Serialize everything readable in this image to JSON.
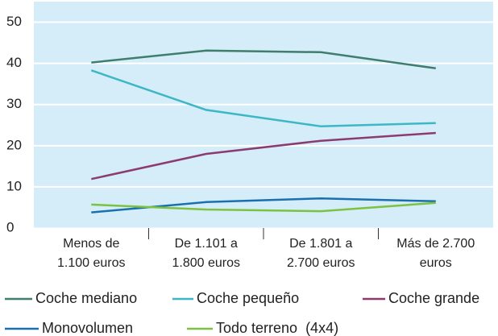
{
  "chart_data": {
    "type": "line",
    "categories": [
      [
        "Menos de",
        "1.100 euros"
      ],
      [
        "De 1.101 a",
        "1.800 euros"
      ],
      [
        "De 1.801 a",
        "2.700 euros"
      ],
      [
        "Más de 2.700",
        "euros"
      ]
    ],
    "series": [
      {
        "name": "Coche mediano",
        "color": "#3f7d6c",
        "values": [
          40.2,
          43.1,
          42.7,
          38.8
        ]
      },
      {
        "name": "Coche pequeño",
        "color": "#3db6c6",
        "values": [
          38.3,
          28.7,
          24.7,
          25.5
        ]
      },
      {
        "name": "Coche grande",
        "color": "#8c3b70",
        "values": [
          11.9,
          18,
          21.2,
          23.1
        ]
      },
      {
        "name": "Monovolumen",
        "color": "#1a70ae",
        "values": [
          3.8,
          6.3,
          7.2,
          6.5
        ]
      },
      {
        "name": "Todo terreno  (4x4)",
        "color": "#7cc242",
        "values": [
          5.7,
          4.5,
          4.1,
          6.1
        ]
      }
    ],
    "ylim": [
      0,
      55
    ],
    "yticks": [
      0,
      10,
      20,
      30,
      40,
      50
    ],
    "grid": true
  }
}
